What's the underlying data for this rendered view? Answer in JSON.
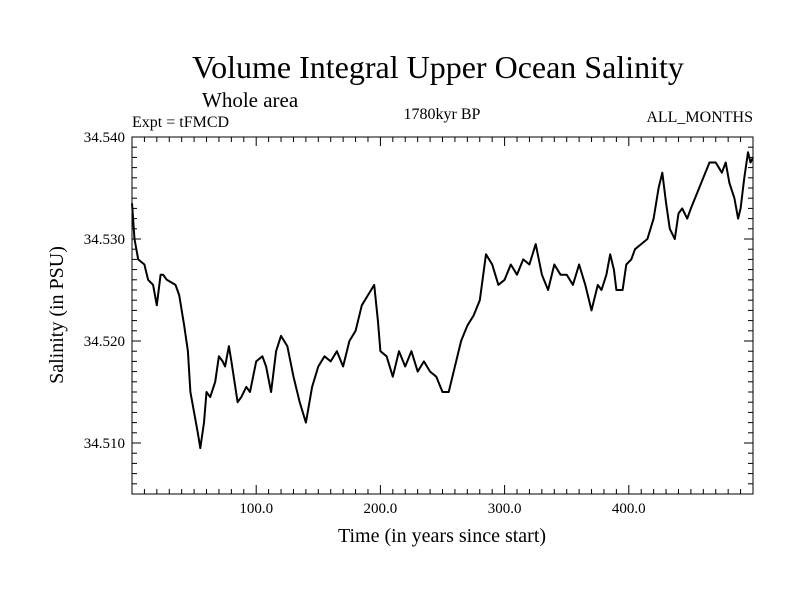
{
  "chart_data": {
    "type": "line",
    "title": "Volume Integral Upper Ocean Salinity",
    "subtitle": "Whole area",
    "experiment_label": "Expt = tFMCD",
    "period_label": "1780kyr BP",
    "months_label": "ALL_MONTHS",
    "xlabel": "Time (in years since start)",
    "ylabel": "Salinity (in PSU)",
    "xlim": [
      0,
      500
    ],
    "ylim": [
      34.505,
      34.54
    ],
    "x_ticks": [
      100,
      200,
      300,
      400
    ],
    "x_tick_labels": [
      "100.0",
      "200.0",
      "300.0",
      "400.0"
    ],
    "y_ticks": [
      34.51,
      34.52,
      34.53,
      34.54
    ],
    "y_tick_labels": [
      "34.510",
      "34.520",
      "34.530",
      "34.540"
    ],
    "grid": false,
    "series": [
      {
        "name": "Salinity",
        "color": "#000000",
        "points": [
          [
            0,
            34.5335
          ],
          [
            2,
            34.53
          ],
          [
            5,
            34.528
          ],
          [
            10,
            34.5275
          ],
          [
            13,
            34.526
          ],
          [
            17,
            34.5255
          ],
          [
            20,
            34.5235
          ],
          [
            23,
            34.5265
          ],
          [
            25,
            34.5265
          ],
          [
            28,
            34.526
          ],
          [
            35,
            34.5255
          ],
          [
            38,
            34.5245
          ],
          [
            42,
            34.5215
          ],
          [
            45,
            34.519
          ],
          [
            47,
            34.515
          ],
          [
            50,
            34.513
          ],
          [
            53,
            34.511
          ],
          [
            55,
            34.5095
          ],
          [
            58,
            34.512
          ],
          [
            60,
            34.515
          ],
          [
            63,
            34.5145
          ],
          [
            67,
            34.516
          ],
          [
            70,
            34.5185
          ],
          [
            73,
            34.518
          ],
          [
            75,
            34.5175
          ],
          [
            78,
            34.5195
          ],
          [
            80,
            34.518
          ],
          [
            85,
            34.514
          ],
          [
            88,
            34.5145
          ],
          [
            92,
            34.5155
          ],
          [
            95,
            34.515
          ],
          [
            100,
            34.518
          ],
          [
            105,
            34.5185
          ],
          [
            108,
            34.5175
          ],
          [
            112,
            34.515
          ],
          [
            116,
            34.519
          ],
          [
            120,
            34.5205
          ],
          [
            125,
            34.5195
          ],
          [
            130,
            34.5165
          ],
          [
            135,
            34.514
          ],
          [
            140,
            34.512
          ],
          [
            145,
            34.5155
          ],
          [
            150,
            34.5175
          ],
          [
            155,
            34.5185
          ],
          [
            160,
            34.518
          ],
          [
            165,
            34.519
          ],
          [
            170,
            34.5175
          ],
          [
            175,
            34.52
          ],
          [
            180,
            34.521
          ],
          [
            185,
            34.5235
          ],
          [
            190,
            34.5245
          ],
          [
            195,
            34.5255
          ],
          [
            198,
            34.522
          ],
          [
            200,
            34.519
          ],
          [
            205,
            34.5185
          ],
          [
            210,
            34.5165
          ],
          [
            215,
            34.519
          ],
          [
            220,
            34.5175
          ],
          [
            225,
            34.519
          ],
          [
            230,
            34.517
          ],
          [
            235,
            34.518
          ],
          [
            240,
            34.517
          ],
          [
            245,
            34.5165
          ],
          [
            250,
            34.515
          ],
          [
            255,
            34.515
          ],
          [
            260,
            34.5175
          ],
          [
            265,
            34.52
          ],
          [
            270,
            34.5215
          ],
          [
            275,
            34.5225
          ],
          [
            280,
            34.524
          ],
          [
            285,
            34.5285
          ],
          [
            290,
            34.5275
          ],
          [
            295,
            34.5255
          ],
          [
            300,
            34.526
          ],
          [
            305,
            34.5275
          ],
          [
            310,
            34.5265
          ],
          [
            315,
            34.528
          ],
          [
            320,
            34.5275
          ],
          [
            325,
            34.5295
          ],
          [
            330,
            34.5265
          ],
          [
            335,
            34.525
          ],
          [
            340,
            34.5275
          ],
          [
            345,
            34.5265
          ],
          [
            350,
            34.5265
          ],
          [
            355,
            34.5255
          ],
          [
            360,
            34.5275
          ],
          [
            365,
            34.5255
          ],
          [
            370,
            34.523
          ],
          [
            375,
            34.5255
          ],
          [
            378,
            34.525
          ],
          [
            382,
            34.5265
          ],
          [
            385,
            34.5285
          ],
          [
            388,
            34.527
          ],
          [
            390,
            34.525
          ],
          [
            395,
            34.525
          ],
          [
            398,
            34.5275
          ],
          [
            402,
            34.528
          ],
          [
            405,
            34.529
          ],
          [
            410,
            34.5295
          ],
          [
            415,
            34.53
          ],
          [
            420,
            34.532
          ],
          [
            424,
            34.535
          ],
          [
            427,
            34.5365
          ],
          [
            430,
            34.5335
          ],
          [
            433,
            34.531
          ],
          [
            437,
            34.53
          ],
          [
            440,
            34.5325
          ],
          [
            443,
            34.533
          ],
          [
            447,
            34.532
          ],
          [
            450,
            34.533
          ],
          [
            455,
            34.5345
          ],
          [
            460,
            34.536
          ],
          [
            465,
            34.5375
          ],
          [
            470,
            34.5375
          ],
          [
            475,
            34.5365
          ],
          [
            478,
            34.5375
          ],
          [
            481,
            34.5355
          ],
          [
            485,
            34.534
          ],
          [
            488,
            34.532
          ],
          [
            490,
            34.533
          ],
          [
            493,
            34.536
          ],
          [
            496,
            34.5385
          ],
          [
            498,
            34.5375
          ],
          [
            500,
            34.538
          ]
        ]
      }
    ]
  }
}
